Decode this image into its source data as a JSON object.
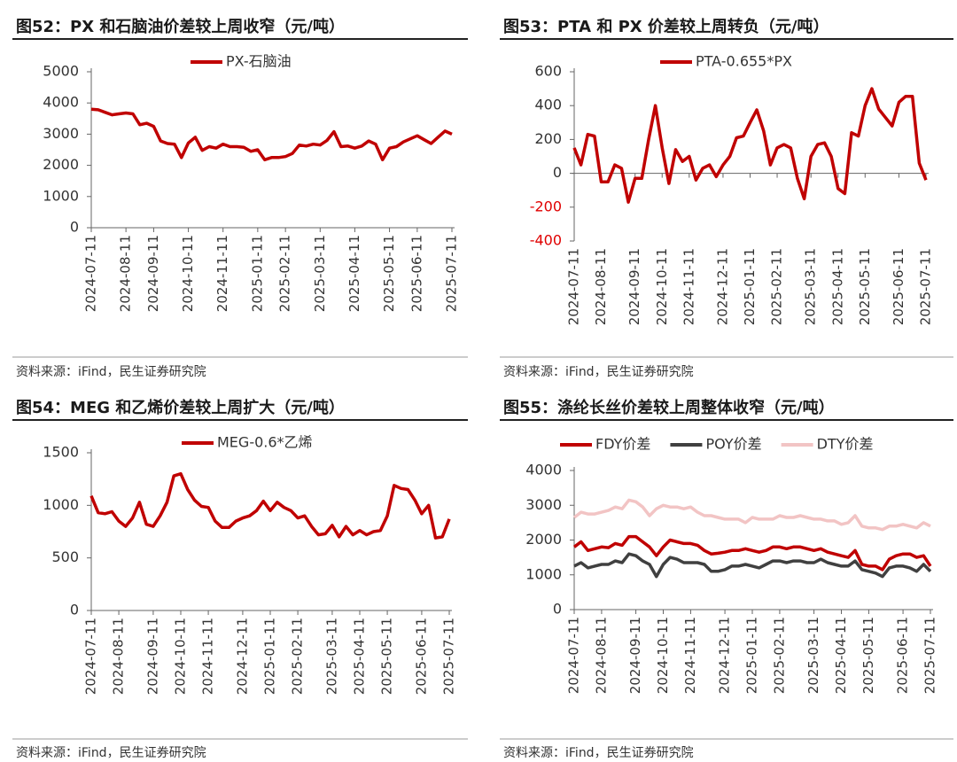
{
  "chart_data": [
    {
      "type": "line",
      "title": "图52：PX 和石脑油价差较上周收窄（元/吨）",
      "source": "资料来源：iFind，民生证券研究院",
      "categories": [
        "2024-07-11",
        null,
        null,
        null,
        null,
        "2024-08-11",
        null,
        null,
        null,
        "2024-09-11",
        null,
        null,
        null,
        null,
        "2024-10-11",
        null,
        null,
        null,
        null,
        "2024-11-11",
        null,
        null,
        null,
        null,
        "2025-01-11",
        null,
        null,
        null,
        "2025-02-11",
        null,
        null,
        null,
        null,
        "2025-03-11",
        null,
        null,
        null,
        null,
        "2025-04-11",
        null,
        null,
        null,
        null,
        "2025-05-11",
        null,
        null,
        null,
        "2025-06-11",
        null,
        null,
        null,
        null,
        "2025-07-11"
      ],
      "series": [
        {
          "name": "PX-石脑油",
          "color": "#c00000",
          "values": [
            3800,
            3780,
            3700,
            3620,
            3650,
            3680,
            3650,
            3300,
            3350,
            3250,
            2780,
            2700,
            2680,
            2250,
            2720,
            2900,
            2480,
            2600,
            2550,
            2680,
            2600,
            2600,
            2580,
            2450,
            2500,
            2180,
            2250,
            2250,
            2280,
            2380,
            2650,
            2620,
            2680,
            2650,
            2800,
            3080,
            2600,
            2620,
            2550,
            2620,
            2780,
            2680,
            2180,
            2550,
            2600,
            2750,
            2850,
            2950,
            2820,
            2700,
            2900,
            3100,
            3000
          ]
        }
      ],
      "ylim": [
        0,
        5000
      ],
      "yticks": [
        0,
        1000,
        2000,
        3000,
        4000,
        5000
      ],
      "legend": "top"
    },
    {
      "type": "line",
      "title": "图53：PTA 和 PX 价差较上周转负（元/吨）",
      "source": "资料来源：iFind，民生证券研究院",
      "categories": [
        "2024-07-11",
        null,
        null,
        null,
        "2024-08-11",
        null,
        null,
        null,
        null,
        "2024-09-11",
        null,
        null,
        null,
        "2024-10-11",
        null,
        null,
        null,
        "2024-11-11",
        null,
        null,
        null,
        null,
        "2024-12-11",
        null,
        null,
        null,
        "2025-01-11",
        null,
        null,
        null,
        "2025-02-11",
        null,
        null,
        null,
        null,
        "2025-03-11",
        null,
        null,
        null,
        "2025-04-11",
        null,
        null,
        null,
        "2025-05-11",
        null,
        null,
        null,
        null,
        "2025-06-11",
        null,
        null,
        null,
        "2025-07-11"
      ],
      "series": [
        {
          "name": "PTA-0.655*PX",
          "color": "#c00000",
          "values": [
            150,
            50,
            230,
            220,
            -50,
            -50,
            50,
            30,
            -170,
            -30,
            -30,
            200,
            400,
            150,
            -60,
            140,
            70,
            100,
            -40,
            30,
            50,
            -20,
            50,
            100,
            210,
            220,
            300,
            375,
            250,
            50,
            150,
            170,
            150,
            -30,
            -150,
            100,
            170,
            180,
            100,
            -90,
            -120,
            240,
            220,
            400,
            500,
            380,
            330,
            280,
            420,
            455,
            455,
            60,
            -40
          ]
        }
      ],
      "ylim": [
        -400,
        600
      ],
      "yticks": [
        -400,
        -200,
        0,
        200,
        400,
        600
      ],
      "negative_tick_color": "#e00000",
      "legend": "top"
    },
    {
      "type": "line",
      "title": "图54：MEG 和乙烯价差较上周扩大（元/吨）",
      "source": "资料来源：iFind，民生证券研究院",
      "categories": [
        "2024-07-11",
        null,
        null,
        null,
        "2024-08-11",
        null,
        null,
        null,
        null,
        "2024-09-11",
        null,
        null,
        null,
        "2024-10-11",
        null,
        null,
        null,
        "2024-11-11",
        null,
        null,
        null,
        null,
        "2024-12-11",
        null,
        null,
        null,
        "2025-01-11",
        null,
        null,
        null,
        "2025-02-11",
        null,
        null,
        null,
        null,
        "2025-03-11",
        null,
        null,
        null,
        "2025-04-11",
        null,
        null,
        null,
        "2025-05-11",
        null,
        null,
        null,
        null,
        "2025-06-11",
        null,
        null,
        null,
        "2025-07-11"
      ],
      "series": [
        {
          "name": "MEG-0.6*乙烯",
          "color": "#c00000",
          "values": [
            1090,
            930,
            920,
            940,
            850,
            800,
            880,
            1030,
            820,
            800,
            900,
            1030,
            1280,
            1300,
            1150,
            1050,
            990,
            980,
            850,
            790,
            790,
            850,
            880,
            900,
            950,
            1040,
            950,
            1030,
            980,
            950,
            880,
            900,
            800,
            720,
            730,
            810,
            700,
            800,
            720,
            760,
            720,
            750,
            760,
            900,
            1190,
            1160,
            1150,
            1050,
            920,
            1000,
            690,
            700,
            870
          ]
        }
      ],
      "ylim": [
        0,
        1500
      ],
      "yticks": [
        0,
        500,
        1000,
        1500
      ],
      "legend": "top"
    },
    {
      "type": "line",
      "title": "图55：涤纶长丝价差较上周整体收窄（元/吨）",
      "source": "资料来源：iFind，民生证券研究院",
      "categories": [
        "2024-07-11",
        null,
        null,
        null,
        "2024-08-11",
        null,
        null,
        null,
        null,
        "2024-09-11",
        null,
        null,
        null,
        "2024-10-11",
        null,
        null,
        null,
        "2024-11-11",
        null,
        null,
        null,
        null,
        "2024-12-11",
        null,
        null,
        null,
        "2025-01-11",
        null,
        null,
        null,
        "2025-02-11",
        null,
        null,
        null,
        null,
        "2025-03-11",
        null,
        null,
        null,
        "2025-04-11",
        null,
        null,
        null,
        "2025-05-11",
        null,
        null,
        null,
        null,
        "2025-06-11",
        null,
        null,
        null,
        "2025-07-11"
      ],
      "series": [
        {
          "name": "FDY价差",
          "color": "#c00000",
          "values": [
            1800,
            1950,
            1700,
            1750,
            1800,
            1780,
            1900,
            1850,
            2100,
            2100,
            1950,
            1800,
            1550,
            1800,
            2000,
            1950,
            1900,
            1900,
            1850,
            1700,
            1600,
            1620,
            1650,
            1700,
            1700,
            1750,
            1700,
            1650,
            1700,
            1800,
            1800,
            1750,
            1800,
            1800,
            1750,
            1700,
            1750,
            1650,
            1600,
            1550,
            1500,
            1700,
            1300,
            1250,
            1250,
            1150,
            1450,
            1550,
            1600,
            1600,
            1500,
            1550,
            1250
          ]
        },
        {
          "name": "POY价差",
          "color": "#404040",
          "values": [
            1250,
            1350,
            1200,
            1250,
            1300,
            1300,
            1400,
            1350,
            1600,
            1550,
            1400,
            1300,
            950,
            1300,
            1500,
            1450,
            1350,
            1350,
            1350,
            1300,
            1100,
            1100,
            1150,
            1250,
            1250,
            1300,
            1250,
            1200,
            1300,
            1400,
            1400,
            1350,
            1400,
            1400,
            1350,
            1350,
            1450,
            1350,
            1300,
            1250,
            1250,
            1400,
            1150,
            1100,
            1050,
            950,
            1200,
            1250,
            1250,
            1200,
            1100,
            1300,
            1100
          ]
        },
        {
          "name": "DTY价差",
          "color": "#f2c4c4",
          "values": [
            2650,
            2800,
            2750,
            2750,
            2800,
            2850,
            2950,
            2900,
            3150,
            3100,
            2950,
            2700,
            2900,
            3000,
            2950,
            2950,
            2900,
            2950,
            2800,
            2700,
            2700,
            2650,
            2600,
            2600,
            2600,
            2500,
            2650,
            2600,
            2600,
            2600,
            2700,
            2650,
            2650,
            2700,
            2650,
            2600,
            2600,
            2550,
            2550,
            2450,
            2500,
            2700,
            2400,
            2350,
            2350,
            2300,
            2400,
            2400,
            2450,
            2400,
            2350,
            2500,
            2400
          ]
        }
      ],
      "ylim": [
        0,
        4000
      ],
      "yticks": [
        0,
        1000,
        2000,
        3000,
        4000
      ],
      "legend": "top"
    }
  ]
}
